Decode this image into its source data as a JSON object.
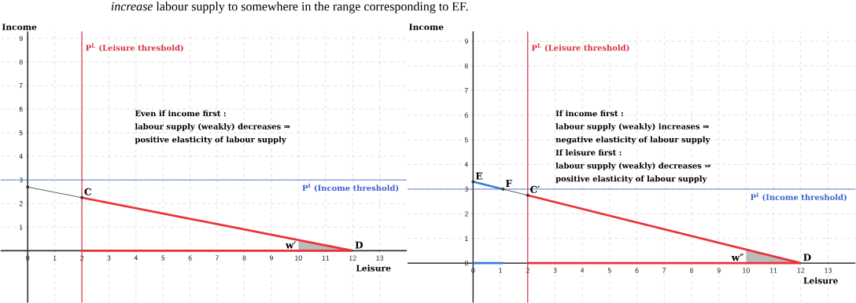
{
  "chart_data": [
    {
      "type": "line",
      "title": "*increase* labour supply to somewhere in the range corresponding to EF.",
      "xlabel": "Leisure",
      "ylabel": "Income",
      "xlim": [
        -1,
        14
      ],
      "ylim": [
        -2.2,
        9.3
      ],
      "xticks": [
        0,
        1,
        2,
        3,
        4,
        5,
        6,
        7,
        8,
        9,
        10,
        11,
        12,
        13
      ],
      "yticks": [
        1,
        2,
        3,
        4,
        5,
        6,
        7,
        8,
        9
      ],
      "grid": true,
      "series": [
        {
          "type": "area",
          "color": "#bbbbbb",
          "x": [
            10,
            12
          ],
          "values": [
            0.45,
            0
          ]
        },
        {
          "color": "#333333",
          "x": [
            0,
            2
          ],
          "values": [
            2.7,
            2.25
          ]
        },
        {
          "color": "#e8333a",
          "x": [
            2,
            12
          ],
          "values": [
            2.25,
            0
          ]
        },
        {
          "color": "#e8333a",
          "x": [
            2,
            12
          ],
          "values": [
            0,
            0
          ]
        },
        {
          "type": "scatter",
          "color": "#333333",
          "x": [
            0,
            2
          ],
          "values": [
            2.7,
            2.25
          ]
        }
      ],
      "ref_lines": [
        {
          "axis": "x",
          "value": 2,
          "label": "P$^{L}$ (Leisure threshold)",
          "color": "#d83040"
        },
        {
          "axis": "y",
          "value": 3,
          "label": "P$^{I}$ (Income threshold)",
          "color": "#3a5fcd"
        }
      ],
      "annotations": [
        "Even if income first :",
        "labour supply (weakly) decreases ⇒",
        "positive elasticity of labour supply",
        {
          "text": "C",
          "x": 2,
          "y": 2.25
        },
        {
          "text": "D",
          "x": 12,
          "y": 0
        },
        {
          "text": "w′",
          "x": 10,
          "y": 0
        }
      ]
    },
    {
      "type": "line",
      "xlabel": "Leisure",
      "ylabel": "Income",
      "xlim": [
        -2.4,
        14
      ],
      "ylim": [
        -1.6,
        9.4
      ],
      "xticks": [
        0,
        1,
        2,
        3,
        4,
        5,
        6,
        7,
        8,
        9,
        10,
        11,
        12,
        13
      ],
      "yticks": [
        0,
        1,
        2,
        3,
        4,
        5,
        6,
        7,
        8,
        9
      ],
      "grid": true,
      "series": [
        {
          "type": "area",
          "color": "#bbbbbb",
          "x": [
            10,
            12
          ],
          "values": [
            0.55,
            0
          ]
        },
        {
          "color": "#3a7be0",
          "x": [
            0,
            1.1
          ],
          "values": [
            3.3,
            3.0
          ]
        },
        {
          "color": "#333333",
          "x": [
            1.1,
            2
          ],
          "values": [
            3.0,
            2.75
          ]
        },
        {
          "color": "#e8333a",
          "x": [
            2,
            12
          ],
          "values": [
            2.75,
            0
          ]
        },
        {
          "color": "#e8333a",
          "x": [
            2,
            12
          ],
          "values": [
            0,
            0
          ]
        },
        {
          "color": "#3a7be0",
          "x": [
            0,
            1.1
          ],
          "values": [
            0,
            0
          ]
        },
        {
          "type": "scatter",
          "color": "#333333",
          "x": [
            0,
            1.1,
            2
          ],
          "values": [
            3.3,
            3.0,
            2.75
          ]
        }
      ],
      "ref_lines": [
        {
          "axis": "x",
          "value": 2,
          "label": "P$^{L}$ (Leisure threshold)",
          "color": "#d83040"
        },
        {
          "axis": "y",
          "value": 3,
          "label": "P$^{I}$ (Income threshold)",
          "color": "#3a5fcd"
        }
      ],
      "annotations": [
        "If income first :",
        "labour supply (weakly) increases ⇒",
        "negative elasticity of labour supply",
        "If leisure first :",
        "labour supply (weakly) decreases ⇒",
        "positive elasticity of labour supply",
        {
          "text": "E",
          "x": 0,
          "y": 3.3
        },
        {
          "text": "F",
          "x": 1.1,
          "y": 3.0
        },
        {
          "text": "C′",
          "x": 2,
          "y": 2.75
        },
        {
          "text": "D",
          "x": 12,
          "y": 0
        },
        {
          "text": "w″",
          "x": 10,
          "y": 0
        }
      ]
    }
  ]
}
